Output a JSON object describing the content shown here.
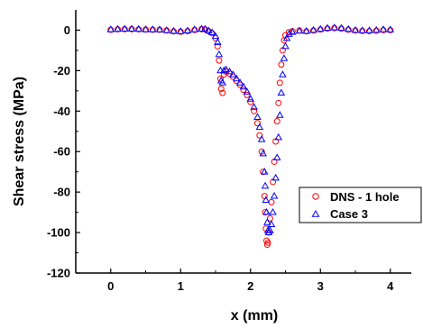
{
  "chart_data": {
    "type": "scatter",
    "xlabel": "x (mm)",
    "ylabel": "Shear stress (MPa)",
    "xlim": [
      -0.5,
      4.3
    ],
    "ylim": [
      -120,
      10
    ],
    "xticks": [
      0,
      1,
      2,
      3,
      4
    ],
    "yticks": [
      0,
      -20,
      -40,
      -60,
      -80,
      -100,
      -120
    ],
    "grid": false,
    "legend_position": "lower-right",
    "series": [
      {
        "name": "DNS - 1 hole",
        "marker": "circle",
        "color": "#ff0000",
        "points": [
          [
            0.0,
            0.2
          ],
          [
            0.1,
            0.4
          ],
          [
            0.2,
            0.5
          ],
          [
            0.3,
            0.5
          ],
          [
            0.4,
            0.4
          ],
          [
            0.5,
            0.3
          ],
          [
            0.6,
            0.2
          ],
          [
            0.7,
            0.2
          ],
          [
            0.8,
            -0.2
          ],
          [
            0.9,
            -0.6
          ],
          [
            1.0,
            -0.8
          ],
          [
            1.1,
            -0.5
          ],
          [
            1.2,
            0.1
          ],
          [
            1.3,
            0.5
          ],
          [
            1.35,
            0.4
          ],
          [
            1.4,
            -0.5
          ],
          [
            1.45,
            -1.5
          ],
          [
            1.5,
            -4
          ],
          [
            1.53,
            -8
          ],
          [
            1.55,
            -15
          ],
          [
            1.57,
            -24
          ],
          [
            1.58,
            -29
          ],
          [
            1.6,
            -31
          ],
          [
            1.62,
            -22
          ],
          [
            1.65,
            -20.5
          ],
          [
            1.7,
            -21.5
          ],
          [
            1.75,
            -23
          ],
          [
            1.8,
            -25
          ],
          [
            1.85,
            -27
          ],
          [
            1.9,
            -29.5
          ],
          [
            1.95,
            -32
          ],
          [
            2.0,
            -35.5
          ],
          [
            2.05,
            -40
          ],
          [
            2.1,
            -46
          ],
          [
            2.13,
            -52
          ],
          [
            2.16,
            -60
          ],
          [
            2.18,
            -70
          ],
          [
            2.2,
            -82
          ],
          [
            2.21,
            -90
          ],
          [
            2.22,
            -98
          ],
          [
            2.23,
            -104
          ],
          [
            2.24,
            -106
          ],
          [
            2.25,
            -105
          ],
          [
            2.26,
            -100
          ],
          [
            2.28,
            -93
          ],
          [
            2.3,
            -85
          ],
          [
            2.32,
            -75
          ],
          [
            2.34,
            -65
          ],
          [
            2.36,
            -55
          ],
          [
            2.38,
            -45
          ],
          [
            2.4,
            -36
          ],
          [
            2.42,
            -26
          ],
          [
            2.44,
            -17
          ],
          [
            2.46,
            -10
          ],
          [
            2.48,
            -5
          ],
          [
            2.5,
            -2.5
          ],
          [
            2.55,
            -1
          ],
          [
            2.6,
            -0.5
          ],
          [
            2.7,
            -0.2
          ],
          [
            2.8,
            -0.6
          ],
          [
            2.9,
            -0.2
          ],
          [
            3.0,
            0.3
          ],
          [
            3.1,
            0.8
          ],
          [
            3.2,
            1.0
          ],
          [
            3.3,
            0.7
          ],
          [
            3.4,
            0.2
          ],
          [
            3.5,
            -0.2
          ],
          [
            3.6,
            -0.4
          ],
          [
            3.7,
            -0.5
          ],
          [
            3.8,
            -0.3
          ],
          [
            3.9,
            0.0
          ],
          [
            4.0,
            0.0
          ]
        ]
      },
      {
        "name": "Case 3",
        "marker": "triangle",
        "color": "#0000ff",
        "points": [
          [
            0.0,
            0.3
          ],
          [
            0.1,
            0.5
          ],
          [
            0.2,
            0.6
          ],
          [
            0.3,
            0.6
          ],
          [
            0.4,
            0.5
          ],
          [
            0.5,
            0.3
          ],
          [
            0.6,
            0.3
          ],
          [
            0.7,
            0.2
          ],
          [
            0.8,
            -0.1
          ],
          [
            0.9,
            -0.5
          ],
          [
            1.0,
            -0.6
          ],
          [
            1.1,
            -0.3
          ],
          [
            1.2,
            0.3
          ],
          [
            1.3,
            0.6
          ],
          [
            1.35,
            0.5
          ],
          [
            1.4,
            -0.3
          ],
          [
            1.45,
            -1.2
          ],
          [
            1.5,
            -3
          ],
          [
            1.53,
            -6
          ],
          [
            1.55,
            -12
          ],
          [
            1.57,
            -20
          ],
          [
            1.58,
            -25
          ],
          [
            1.6,
            -26
          ],
          [
            1.62,
            -20
          ],
          [
            1.65,
            -19.5
          ],
          [
            1.7,
            -20.5
          ],
          [
            1.75,
            -22
          ],
          [
            1.8,
            -24
          ],
          [
            1.85,
            -26
          ],
          [
            1.9,
            -28
          ],
          [
            1.95,
            -30.5
          ],
          [
            2.0,
            -34
          ],
          [
            2.05,
            -38
          ],
          [
            2.1,
            -43
          ],
          [
            2.13,
            -48
          ],
          [
            2.16,
            -54
          ],
          [
            2.18,
            -61
          ],
          [
            2.2,
            -70
          ],
          [
            2.21,
            -77
          ],
          [
            2.22,
            -84
          ],
          [
            2.23,
            -90
          ],
          [
            2.24,
            -95
          ],
          [
            2.25,
            -99
          ],
          [
            2.26,
            -100
          ],
          [
            2.28,
            -99
          ],
          [
            2.3,
            -96
          ],
          [
            2.32,
            -90
          ],
          [
            2.34,
            -82
          ],
          [
            2.36,
            -73
          ],
          [
            2.38,
            -63
          ],
          [
            2.4,
            -53
          ],
          [
            2.42,
            -42
          ],
          [
            2.44,
            -31
          ],
          [
            2.46,
            -22
          ],
          [
            2.48,
            -14
          ],
          [
            2.5,
            -8
          ],
          [
            2.52,
            -4
          ],
          [
            2.55,
            -2
          ],
          [
            2.6,
            -1
          ],
          [
            2.7,
            -0.4
          ],
          [
            2.8,
            -0.5
          ],
          [
            2.9,
            0.0
          ],
          [
            3.0,
            0.5
          ],
          [
            3.1,
            1.0
          ],
          [
            3.2,
            1.2
          ],
          [
            3.3,
            1.0
          ],
          [
            3.4,
            0.5
          ],
          [
            3.5,
            0.0
          ],
          [
            3.6,
            -0.2
          ],
          [
            3.7,
            -0.2
          ],
          [
            3.8,
            0.0
          ],
          [
            3.9,
            0.3
          ],
          [
            4.0,
            0.2
          ]
        ]
      }
    ]
  }
}
